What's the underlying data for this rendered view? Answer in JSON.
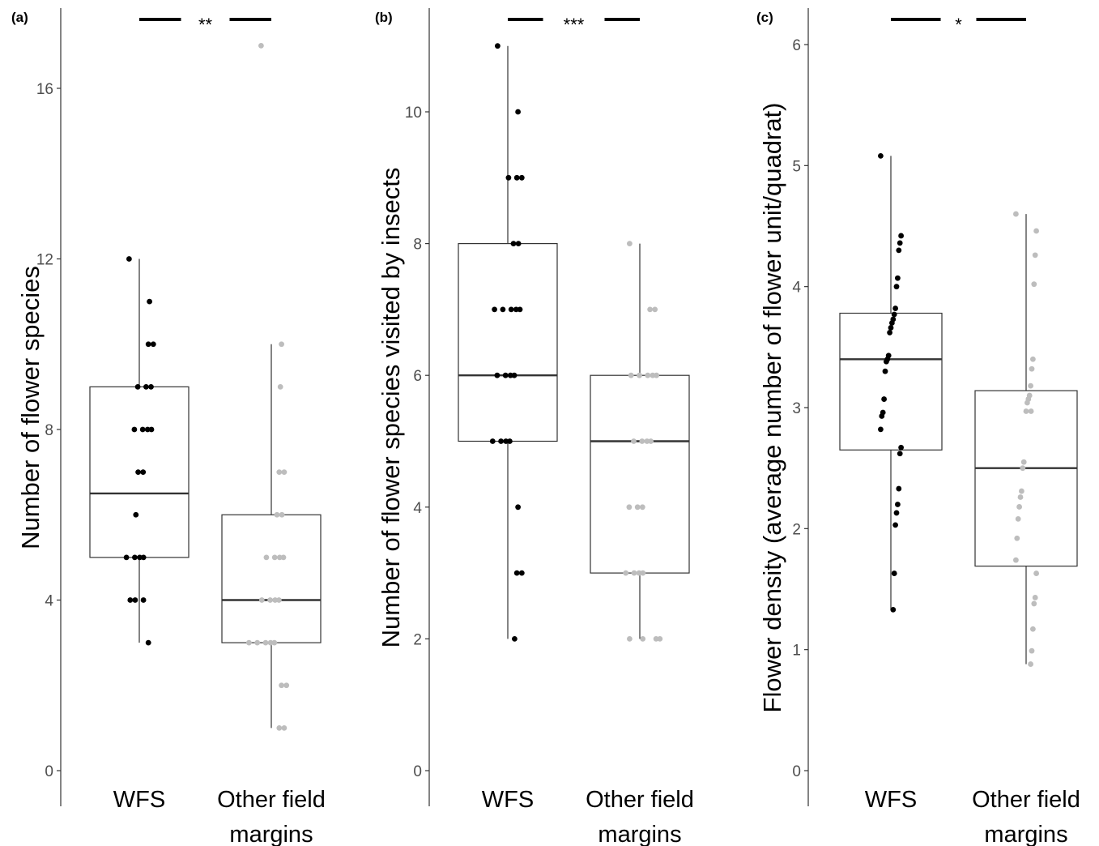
{
  "chart_data": [
    {
      "type": "box",
      "panel_label": "(a)",
      "ylabel": "Number of flower species",
      "ylim": [
        0,
        17.8
      ],
      "yticks": [
        0,
        4,
        8,
        12,
        16
      ],
      "grid": false,
      "significance": "**",
      "categories": [
        [
          "WFS"
        ],
        [
          "Other field",
          "margins"
        ]
      ],
      "series": [
        {
          "color": "#000000",
          "box": {
            "whisker_low": 3,
            "q1": 5,
            "median": 6.5,
            "q3": 9,
            "whisker_high": 12
          },
          "points": [
            12,
            11,
            10,
            10,
            9,
            9,
            9,
            8,
            8,
            8,
            8,
            7,
            7,
            6,
            5,
            5,
            5,
            5,
            4,
            4,
            4,
            3
          ]
        },
        {
          "color": "#bdbdbd",
          "box": {
            "whisker_low": 1,
            "q1": 3,
            "median": 4,
            "q3": 6,
            "whisker_high": 10
          },
          "points": [
            17,
            10,
            9,
            7,
            7,
            6,
            6,
            5,
            5,
            5,
            5,
            4,
            4,
            4,
            4,
            3,
            3,
            3,
            3,
            3,
            2,
            2,
            1,
            1
          ]
        }
      ]
    },
    {
      "type": "box",
      "panel_label": "(b)",
      "ylabel": "Number of flower species visited by insects",
      "ylim": [
        0,
        11.5
      ],
      "yticks": [
        0,
        2,
        4,
        6,
        8,
        10
      ],
      "grid": false,
      "significance": "***",
      "categories": [
        [
          "WFS"
        ],
        [
          "Other field",
          "margins"
        ]
      ],
      "series": [
        {
          "color": "#000000",
          "box": {
            "whisker_low": 2,
            "q1": 5,
            "median": 6,
            "q3": 8,
            "whisker_high": 11
          },
          "points": [
            11,
            10,
            9,
            9,
            9,
            8,
            8,
            7,
            7,
            7,
            7,
            7,
            6,
            6,
            6,
            6,
            5,
            5,
            5,
            5,
            4,
            3,
            3,
            2
          ]
        },
        {
          "color": "#bdbdbd",
          "box": {
            "whisker_low": 2,
            "q1": 3,
            "median": 5,
            "q3": 6,
            "whisker_high": 8
          },
          "points": [
            8,
            7,
            7,
            6,
            6,
            6,
            6,
            6,
            5,
            5,
            5,
            5,
            4,
            4,
            4,
            3,
            3,
            3,
            3,
            2,
            2,
            2,
            2
          ]
        }
      ]
    },
    {
      "type": "box",
      "panel_label": "(c)",
      "ylabel": "Flower density (average number of flower unit/quadrat)",
      "ylim": [
        0,
        6.3
      ],
      "yticks": [
        0,
        1,
        2,
        3,
        4,
        5,
        6
      ],
      "grid": false,
      "significance": "*",
      "categories": [
        [
          "WFS"
        ],
        [
          "Other field",
          "margins"
        ]
      ],
      "series": [
        {
          "color": "#000000",
          "box": {
            "whisker_low": 1.33,
            "q1": 2.65,
            "median": 3.4,
            "q3": 3.78,
            "whisker_high": 5.08
          },
          "points": [
            5.08,
            4.42,
            4.36,
            4.3,
            4.07,
            4.0,
            3.82,
            3.77,
            3.73,
            3.7,
            3.66,
            3.62,
            3.43,
            3.4,
            3.38,
            3.3,
            3.07,
            2.96,
            2.93,
            2.82,
            2.67,
            2.62,
            2.33,
            2.2,
            2.13,
            2.03,
            1.63,
            1.33
          ]
        },
        {
          "color": "#bdbdbd",
          "box": {
            "whisker_low": 0.88,
            "q1": 1.69,
            "median": 2.5,
            "q3": 3.14,
            "whisker_high": 4.6
          },
          "points": [
            4.6,
            4.46,
            4.26,
            4.02,
            3.4,
            3.32,
            3.18,
            3.1,
            3.07,
            3.04,
            2.97,
            2.97,
            2.55,
            2.5,
            2.31,
            2.26,
            2.18,
            2.08,
            1.92,
            1.74,
            1.63,
            1.43,
            1.38,
            1.17,
            0.99,
            0.88
          ]
        }
      ]
    }
  ]
}
